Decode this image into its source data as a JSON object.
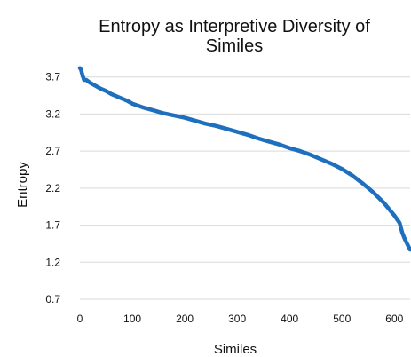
{
  "chart_data": {
    "type": "line",
    "title_lines": [
      "Entropy as Interpretive Diversity of",
      "Similes"
    ],
    "xlabel": "Similes",
    "ylabel": "Entropy",
    "xlim": [
      0,
      630
    ],
    "ylim": [
      0.7,
      3.9
    ],
    "x_ticks": [
      "0",
      "100",
      "200",
      "300",
      "400",
      "500",
      "600"
    ],
    "y_ticks": [
      "3.7",
      "3.2",
      "2.7",
      "2.2",
      "1.7",
      "1.2",
      "0.7"
    ],
    "grid": true,
    "legend": "none",
    "series": [
      {
        "color": "#1f6fbf",
        "x": [
          0,
          2,
          5,
          8,
          12,
          20,
          30,
          40,
          50,
          60,
          70,
          80,
          90,
          100,
          120,
          140,
          160,
          180,
          200,
          220,
          240,
          260,
          280,
          300,
          320,
          340,
          360,
          380,
          400,
          420,
          440,
          460,
          480,
          500,
          520,
          540,
          560,
          580,
          600,
          610,
          615,
          620,
          625,
          630
        ],
        "values": [
          3.82,
          3.8,
          3.72,
          3.66,
          3.66,
          3.62,
          3.58,
          3.54,
          3.51,
          3.47,
          3.44,
          3.41,
          3.38,
          3.34,
          3.29,
          3.25,
          3.21,
          3.18,
          3.15,
          3.11,
          3.07,
          3.04,
          3.0,
          2.96,
          2.92,
          2.87,
          2.83,
          2.79,
          2.74,
          2.7,
          2.65,
          2.59,
          2.53,
          2.46,
          2.37,
          2.26,
          2.14,
          2.0,
          1.83,
          1.73,
          1.6,
          1.51,
          1.44,
          1.37
        ]
      }
    ]
  }
}
